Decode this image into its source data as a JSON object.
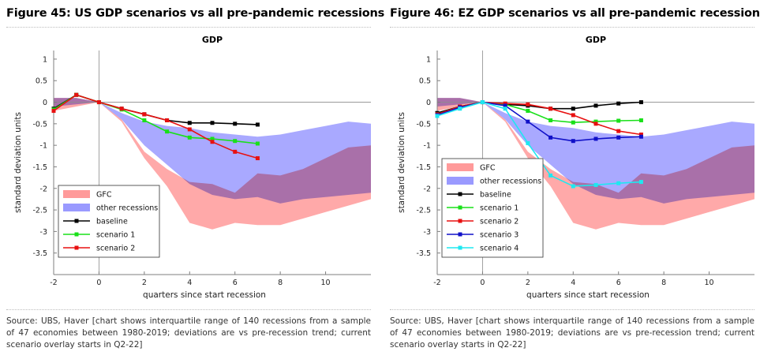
{
  "colors": {
    "gfc": "#ff9a9a",
    "other": "#9a9aff",
    "baseline": "#000000",
    "scenario1": "#19e019",
    "scenario2": "#e81010",
    "scenario3": "#1010c8",
    "scenario4": "#1ee8f0",
    "axis": "#7f7f7f",
    "zero_line": "#8c8c8c"
  },
  "panels": [
    {
      "figure_title": "Figure 45: US GDP scenarios vs all pre-pandemic recessions",
      "source": "Source: UBS, Haver [chart shows interquartile range of 140 recessions from a sample of 47 economies between 1980-2019; deviations are vs pre-recession trend; current scenario overlay starts in Q2-22]",
      "chart_data": {
        "type": "line",
        "title": "GDP",
        "xlabel": "quarters since start recession",
        "ylabel": "standard deviation units",
        "xlim": [
          -2,
          12
        ],
        "ylim": [
          -4,
          1.2
        ],
        "xticks": [
          -2,
          0,
          2,
          4,
          6,
          8,
          10
        ],
        "yticks": [
          1,
          0.5,
          0,
          -0.5,
          -1,
          -1.5,
          -2,
          -2.5,
          -3,
          -3.5
        ],
        "ytick_labels": [
          "1",
          "0.5",
          "0",
          "-0.5",
          "-1",
          "-1.5",
          "-2",
          "-2.5",
          "-3",
          "-3.5"
        ],
        "xtick_labels": [
          "-2",
          "0",
          "2",
          "4",
          "6",
          "8",
          "10"
        ],
        "grid": false,
        "legend_position": "bottom-left",
        "bands": [
          {
            "name": "GFC",
            "color_key": "gfc",
            "x": [
              -2,
              -1,
              0,
              1,
              2,
              3,
              4,
              5,
              6,
              7,
              8,
              9,
              10,
              11,
              12
            ],
            "upper": [
              0.1,
              0.1,
              0.0,
              -0.4,
              -1.15,
              -1.55,
              -1.85,
              -1.9,
              -2.1,
              -1.65,
              -1.7,
              -1.55,
              -1.3,
              -1.05,
              -1.0
            ],
            "lower": [
              -0.2,
              -0.1,
              0.0,
              -0.45,
              -1.3,
              -1.95,
              -2.8,
              -2.95,
              -2.8,
              -2.85,
              -2.85,
              -2.7,
              -2.55,
              -2.4,
              -2.25
            ]
          },
          {
            "name": "other recessions",
            "color_key": "other",
            "x": [
              -2,
              -1,
              0,
              1,
              2,
              3,
              4,
              5,
              6,
              7,
              8,
              9,
              10,
              11,
              12
            ],
            "upper": [
              0.1,
              0.1,
              0.0,
              -0.25,
              -0.45,
              -0.55,
              -0.6,
              -0.7,
              -0.75,
              -0.8,
              -0.75,
              -0.65,
              -0.55,
              -0.45,
              -0.5
            ],
            "lower": [
              -0.1,
              -0.05,
              0.0,
              -0.4,
              -1.0,
              -1.45,
              -1.9,
              -2.15,
              -2.25,
              -2.2,
              -2.35,
              -2.25,
              -2.2,
              -2.15,
              -2.1
            ]
          }
        ],
        "series": [
          {
            "name": "baseline",
            "color_key": "baseline",
            "x": [
              -2,
              -1,
              0,
              1,
              2,
              3,
              4,
              5,
              6,
              7
            ],
            "values": [
              -0.15,
              0.17,
              0.0,
              -0.15,
              -0.28,
              -0.42,
              -0.48,
              -0.48,
              -0.5,
              -0.52
            ]
          },
          {
            "name": "scenario 1",
            "color_key": "scenario1",
            "x": [
              -2,
              -1,
              0,
              1,
              2,
              3,
              4,
              5,
              6,
              7
            ],
            "values": [
              -0.17,
              0.17,
              0.0,
              -0.17,
              -0.42,
              -0.68,
              -0.82,
              -0.85,
              -0.9,
              -0.96
            ]
          },
          {
            "name": "scenario 2",
            "color_key": "scenario2",
            "x": [
              -2,
              -1,
              0,
              1,
              2,
              3,
              4,
              5,
              6,
              7
            ],
            "values": [
              -0.2,
              0.17,
              0.0,
              -0.15,
              -0.28,
              -0.42,
              -0.63,
              -0.92,
              -1.15,
              -1.3
            ]
          }
        ]
      }
    },
    {
      "figure_title": "Figure 46: EZ GDP scenarios vs all pre-pandemic recessions",
      "source": "Source: UBS, Haver [chart shows interquartile range of 140 recessions from a sample of 47 economies between 1980-2019; deviations are vs pre-recession trend; current scenario overlay starts in Q2-22]",
      "chart_data": {
        "type": "line",
        "title": "GDP",
        "xlabel": "quarters since start recession",
        "ylabel": "standard deviation units",
        "xlim": [
          -2,
          12
        ],
        "ylim": [
          -4,
          1.2
        ],
        "xticks": [
          -2,
          0,
          2,
          4,
          6,
          8,
          10
        ],
        "yticks": [
          1,
          0.5,
          0,
          -0.5,
          -1,
          -1.5,
          -2,
          -2.5,
          -3,
          -3.5
        ],
        "ytick_labels": [
          "1",
          "0.5",
          "0",
          "-0.5",
          "-1",
          "-1.5",
          "-2",
          "-2.5",
          "-3",
          "-3.5"
        ],
        "xtick_labels": [
          "-2",
          "0",
          "2",
          "4",
          "6",
          "8",
          "10"
        ],
        "grid": false,
        "legend_position": "bottom-left",
        "bands": [
          {
            "name": "GFC",
            "color_key": "gfc",
            "x": [
              -2,
              -1,
              0,
              1,
              2,
              3,
              4,
              5,
              6,
              7,
              8,
              9,
              10,
              11,
              12
            ],
            "upper": [
              0.1,
              0.1,
              0.0,
              -0.4,
              -1.15,
              -1.55,
              -1.85,
              -1.9,
              -2.1,
              -1.65,
              -1.7,
              -1.55,
              -1.3,
              -1.05,
              -1.0
            ],
            "lower": [
              -0.2,
              -0.1,
              0.0,
              -0.45,
              -1.3,
              -1.95,
              -2.8,
              -2.95,
              -2.8,
              -2.85,
              -2.85,
              -2.7,
              -2.55,
              -2.4,
              -2.25
            ]
          },
          {
            "name": "other recessions",
            "color_key": "other",
            "x": [
              -2,
              -1,
              0,
              1,
              2,
              3,
              4,
              5,
              6,
              7,
              8,
              9,
              10,
              11,
              12
            ],
            "upper": [
              0.1,
              0.1,
              0.0,
              -0.25,
              -0.45,
              -0.55,
              -0.6,
              -0.7,
              -0.75,
              -0.8,
              -0.75,
              -0.65,
              -0.55,
              -0.45,
              -0.5
            ],
            "lower": [
              -0.1,
              -0.05,
              0.0,
              -0.4,
              -1.0,
              -1.45,
              -1.9,
              -2.15,
              -2.25,
              -2.2,
              -2.35,
              -2.25,
              -2.2,
              -2.15,
              -2.1
            ]
          }
        ],
        "series": [
          {
            "name": "baseline",
            "color_key": "baseline",
            "x": [
              -2,
              -1,
              0,
              1,
              2,
              3,
              4,
              5,
              6,
              7
            ],
            "values": [
              -0.25,
              -0.1,
              0.0,
              -0.05,
              -0.08,
              -0.15,
              -0.15,
              -0.08,
              -0.03,
              0.0
            ]
          },
          {
            "name": "scenario 1",
            "color_key": "scenario1",
            "x": [
              -2,
              -1,
              0,
              1,
              2,
              3,
              4,
              5,
              6,
              7
            ],
            "values": [
              -0.28,
              -0.1,
              0.0,
              -0.05,
              -0.2,
              -0.42,
              -0.47,
              -0.45,
              -0.43,
              -0.42
            ]
          },
          {
            "name": "scenario 2",
            "color_key": "scenario2",
            "x": [
              -2,
              -1,
              0,
              1,
              2,
              3,
              4,
              5,
              6,
              7
            ],
            "values": [
              -0.28,
              -0.1,
              0.0,
              -0.03,
              -0.05,
              -0.15,
              -0.3,
              -0.5,
              -0.67,
              -0.75
            ]
          },
          {
            "name": "scenario 3",
            "color_key": "scenario3",
            "x": [
              -2,
              -1,
              0,
              1,
              2,
              3,
              4,
              5,
              6,
              7
            ],
            "values": [
              -0.3,
              -0.12,
              0.0,
              -0.08,
              -0.45,
              -0.82,
              -0.9,
              -0.85,
              -0.82,
              -0.8
            ]
          },
          {
            "name": "scenario 4",
            "color_key": "scenario4",
            "x": [
              -2,
              -1,
              0,
              1,
              2,
              3,
              4,
              5,
              6,
              7
            ],
            "values": [
              -0.32,
              -0.15,
              0.0,
              -0.15,
              -0.95,
              -1.7,
              -1.95,
              -1.92,
              -1.88,
              -1.85
            ]
          }
        ]
      }
    }
  ]
}
